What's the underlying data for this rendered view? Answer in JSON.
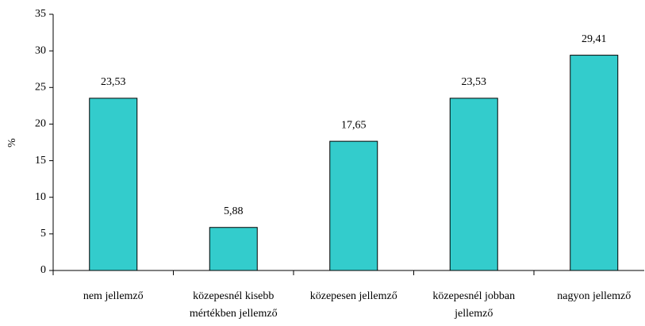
{
  "chart_data": {
    "type": "bar",
    "ylabel": "%",
    "categories": [
      "nem jellemző",
      "közepesnél kisebb mértékben jellemző",
      "közepesen jellemző",
      "közepesnél jobban jellemző",
      "nagyon jellemző"
    ],
    "values": [
      23.53,
      5.88,
      17.65,
      23.53,
      29.41
    ],
    "value_labels": [
      "23,53",
      "5,88",
      "17,65",
      "23,53",
      "29,41"
    ],
    "color": "#33cccc",
    "ylim": [
      0,
      35
    ],
    "yticks": [
      0,
      5,
      10,
      15,
      20,
      25,
      30,
      35
    ],
    "grid": false
  }
}
